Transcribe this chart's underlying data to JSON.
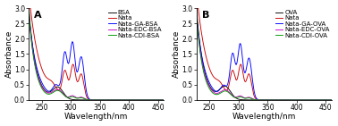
{
  "panel_A_label": "A",
  "panel_B_label": "B",
  "xlabel": "Wavelength/nm",
  "ylabel": "Absorbance",
  "xlim": [
    228,
    460
  ],
  "ylim": [
    0,
    3.0
  ],
  "yticks": [
    0.0,
    0.5,
    1.0,
    1.5,
    2.0,
    2.5,
    3.0
  ],
  "xticks": [
    250,
    300,
    350,
    400,
    450
  ],
  "legend_A": [
    "BSA",
    "Nata",
    "Nata-GA-BSA",
    "Nata-EDC-BSA",
    "Nata-CDI-BSA"
  ],
  "legend_B": [
    "OVA",
    "Nata",
    "Nata-GA-OVA",
    "Nata-EDC-OVA",
    "Nata-CDI-OVA"
  ],
  "colors": [
    "black",
    "#CC0000",
    "blue",
    "#CC00CC",
    "#009900"
  ],
  "tick_fontsize": 5.5,
  "label_fontsize": 6.5,
  "legend_fontsize": 5.0,
  "panel_label_fontsize": 8
}
